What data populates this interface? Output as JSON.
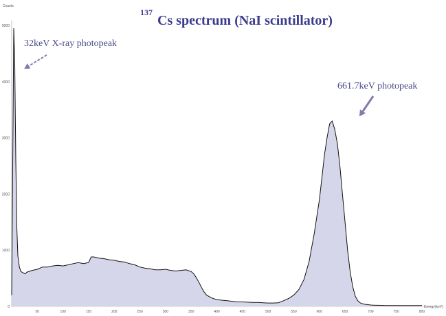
{
  "chart_data": {
    "type": "area",
    "title_superscript": "137",
    "title": "Cs spectrum  (NaI scintillator)",
    "xlabel": "Energy(keV)",
    "ylabel": "Counts",
    "xlim": [
      0,
      800
    ],
    "ylim": [
      0,
      5000
    ],
    "x_ticks": [
      50,
      100,
      150,
      200,
      250,
      300,
      350,
      400,
      450,
      500,
      550,
      600,
      650,
      700,
      750,
      800
    ],
    "y_ticks": [
      0,
      1000,
      2000,
      3000,
      4000,
      5000
    ],
    "x_tick_labels": [
      "50",
      "100",
      "150",
      "200",
      "250",
      "300",
      "350",
      "400",
      "450",
      "500",
      "550",
      "600",
      "650",
      "700",
      "750",
      "800"
    ],
    "y_tick_labels": [
      "0",
      "1000",
      "2000",
      "3000",
      "4000",
      "5000"
    ],
    "grid": false,
    "colors": {
      "fill": "#d6d6ea",
      "line": "#111111",
      "annotation": "#4a4a8a",
      "title": "#3b3b8e"
    },
    "annotations": [
      {
        "text": "32keV X-ray photopeak",
        "points_to": [
          5,
          4300
        ]
      },
      {
        "text": "661.7keV photopeak",
        "points_to": [
          661.7,
          3300
        ]
      }
    ],
    "series": [
      {
        "x": [
          0,
          2,
          4,
          6,
          8,
          10,
          12,
          15,
          18,
          22,
          26,
          30,
          40,
          50,
          60,
          70,
          80,
          90,
          100,
          110,
          120,
          130,
          140,
          150,
          155,
          160,
          170,
          180,
          190,
          200,
          210,
          220,
          230,
          240,
          250,
          260,
          270,
          280,
          290,
          300,
          310,
          320,
          330,
          340,
          350,
          355,
          360,
          365,
          370,
          375,
          380,
          390,
          400,
          410,
          420,
          430,
          440,
          450,
          460,
          470,
          480,
          490,
          500,
          510,
          520,
          530,
          540,
          550,
          560,
          570,
          580,
          590,
          600,
          605,
          610,
          615,
          620,
          625,
          630,
          635,
          640,
          645,
          650,
          655,
          660,
          665,
          670,
          675,
          680,
          685,
          690,
          695,
          700,
          705,
          710,
          715,
          720,
          730,
          740,
          750,
          760,
          770,
          780,
          790,
          800
        ],
        "y": [
          200,
          2500,
          4950,
          4300,
          2600,
          1400,
          900,
          700,
          620,
          600,
          580,
          610,
          640,
          660,
          700,
          700,
          720,
          730,
          720,
          740,
          760,
          780,
          760,
          780,
          880,
          880,
          860,
          850,
          830,
          820,
          800,
          790,
          760,
          740,
          700,
          680,
          670,
          650,
          650,
          660,
          640,
          630,
          640,
          650,
          620,
          580,
          510,
          430,
          340,
          260,
          200,
          150,
          120,
          110,
          100,
          90,
          80,
          80,
          75,
          70,
          70,
          65,
          60,
          60,
          65,
          100,
          140,
          200,
          300,
          480,
          800,
          1300,
          1900,
          2300,
          2700,
          3000,
          3250,
          3300,
          3150,
          2900,
          2500,
          2000,
          1500,
          1000,
          620,
          350,
          180,
          100,
          60,
          45,
          35,
          30,
          25,
          22,
          20,
          20,
          18,
          15,
          15,
          15,
          15,
          15,
          15,
          15,
          15
        ]
      }
    ]
  }
}
